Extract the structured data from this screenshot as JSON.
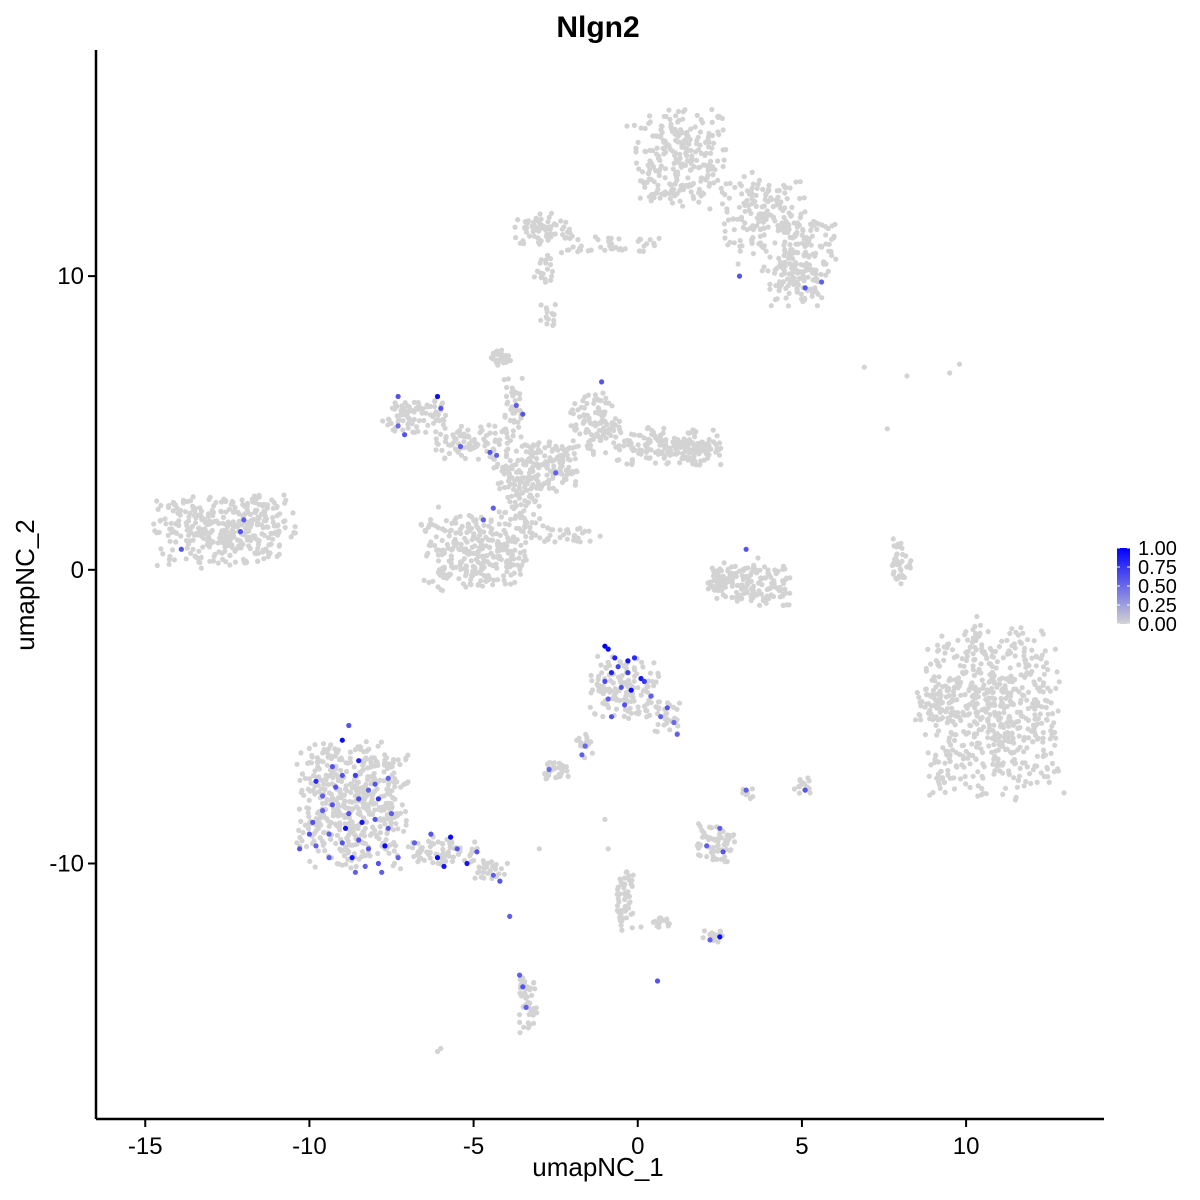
{
  "chart_data": {
    "type": "scatter",
    "title": "Nlgn2",
    "xlabel": "umapNC_1",
    "ylabel": "umapNC_2",
    "xlim": [
      -16.5,
      14.2
    ],
    "ylim": [
      -18.7,
      17.7
    ],
    "x_ticks": [
      -15,
      -10,
      -5,
      0,
      5,
      10
    ],
    "x_tick_labels": [
      "-15",
      "-10",
      "-5",
      "0",
      "5",
      "10"
    ],
    "y_ticks": [
      -10,
      0,
      10
    ],
    "y_tick_labels": [
      "-10",
      "0",
      "10"
    ],
    "grid": false,
    "legend_position": "right",
    "color_scale": {
      "low": "#d3d3d3",
      "high": "#0000ff",
      "min": 0,
      "max": 1,
      "ticks": [
        1.0,
        0.75,
        0.5,
        0.25,
        0.0
      ],
      "tick_labels": [
        "1.00",
        "0.75",
        "0.50",
        "0.25",
        "0.00"
      ]
    },
    "background_clusters": [
      {
        "cx": 1.3,
        "cy": 14.0,
        "rx": 1.3,
        "ry": 1.6,
        "n": 260
      },
      {
        "cx": 3.8,
        "cy": 12.0,
        "rx": 1.2,
        "ry": 1.3,
        "n": 160
      },
      {
        "cx": 5.2,
        "cy": 11.0,
        "rx": 0.9,
        "ry": 0.9,
        "n": 110
      },
      {
        "cx": 4.7,
        "cy": 9.7,
        "rx": 0.9,
        "ry": 0.7,
        "n": 80
      },
      {
        "cx": -2.9,
        "cy": 11.6,
        "rx": 0.8,
        "ry": 0.5,
        "n": 80
      },
      {
        "cx": -0.8,
        "cy": 11.1,
        "rx": 1.5,
        "ry": 0.3,
        "n": 45
      },
      {
        "cx": -2.9,
        "cy": 10.2,
        "rx": 0.4,
        "ry": 0.6,
        "n": 20
      },
      {
        "cx": -2.8,
        "cy": 8.6,
        "rx": 0.3,
        "ry": 0.4,
        "n": 16
      },
      {
        "cx": -12.8,
        "cy": 1.3,
        "rx": 1.8,
        "ry": 1.1,
        "n": 300
      },
      {
        "cx": -11.4,
        "cy": 1.7,
        "rx": 0.9,
        "ry": 0.9,
        "n": 70
      },
      {
        "cx": -6.8,
        "cy": 5.2,
        "rx": 0.9,
        "ry": 0.6,
        "n": 90
      },
      {
        "cx": -5.1,
        "cy": 4.3,
        "rx": 1.1,
        "ry": 0.6,
        "n": 80
      },
      {
        "cx": -4.2,
        "cy": 7.2,
        "rx": 0.3,
        "ry": 0.3,
        "n": 30
      },
      {
        "cx": -3.8,
        "cy": 5.4,
        "rx": 0.3,
        "ry": 1.2,
        "n": 40
      },
      {
        "cx": -3.1,
        "cy": 3.5,
        "rx": 1.2,
        "ry": 0.8,
        "n": 200
      },
      {
        "cx": -1.3,
        "cy": 5.0,
        "rx": 0.7,
        "ry": 1.0,
        "n": 110
      },
      {
        "cx": 0.7,
        "cy": 4.2,
        "rx": 1.3,
        "ry": 0.6,
        "n": 130
      },
      {
        "cx": 1.9,
        "cy": 4.2,
        "rx": 0.6,
        "ry": 0.6,
        "n": 70
      },
      {
        "cx": -5.0,
        "cy": 0.6,
        "rx": 1.5,
        "ry": 1.2,
        "n": 280
      },
      {
        "cx": -3.6,
        "cy": 2.1,
        "rx": 0.6,
        "ry": 1.0,
        "n": 60
      },
      {
        "cx": -2.3,
        "cy": 1.2,
        "rx": 1.1,
        "ry": 0.3,
        "n": 35
      },
      {
        "cx": 3.4,
        "cy": -0.5,
        "rx": 1.2,
        "ry": 0.7,
        "n": 150
      },
      {
        "cx": 2.6,
        "cy": -0.3,
        "rx": 0.4,
        "ry": 0.4,
        "n": 30
      },
      {
        "cx": 8.0,
        "cy": 0.3,
        "rx": 0.3,
        "ry": 0.7,
        "n": 40
      },
      {
        "cx": 10.8,
        "cy": -4.8,
        "rx": 1.9,
        "ry": 2.7,
        "n": 620
      },
      {
        "cx": 9.0,
        "cy": -4.6,
        "rx": 0.5,
        "ry": 0.6,
        "n": 40
      },
      {
        "cx": -8.7,
        "cy": -8.0,
        "rx": 1.6,
        "ry": 2.0,
        "n": 520
      },
      {
        "cx": -5.9,
        "cy": -9.6,
        "rx": 1.0,
        "ry": 0.4,
        "n": 70
      },
      {
        "cx": -4.5,
        "cy": -10.2,
        "rx": 0.5,
        "ry": 0.3,
        "n": 26
      },
      {
        "cx": -0.4,
        "cy": -4.0,
        "rx": 1.0,
        "ry": 1.0,
        "n": 140
      },
      {
        "cx": 0.9,
        "cy": -5.1,
        "rx": 0.4,
        "ry": 0.6,
        "n": 28
      },
      {
        "cx": -1.6,
        "cy": -5.9,
        "rx": 0.3,
        "ry": 0.5,
        "n": 14
      },
      {
        "cx": -2.5,
        "cy": -6.8,
        "rx": 0.4,
        "ry": 0.3,
        "n": 30
      },
      {
        "cx": 2.3,
        "cy": -9.3,
        "rx": 0.6,
        "ry": 0.6,
        "n": 70
      },
      {
        "cx": -0.4,
        "cy": -11.2,
        "rx": 0.3,
        "ry": 1.0,
        "n": 50
      },
      {
        "cx": 0.5,
        "cy": -12.0,
        "rx": 0.6,
        "ry": 0.2,
        "n": 16
      },
      {
        "cx": 2.3,
        "cy": -12.5,
        "rx": 0.3,
        "ry": 0.2,
        "n": 18
      },
      {
        "cx": -3.4,
        "cy": -14.8,
        "rx": 0.3,
        "ry": 0.9,
        "n": 45
      },
      {
        "cx": 5.0,
        "cy": -7.4,
        "rx": 0.3,
        "ry": 0.3,
        "n": 14
      },
      {
        "cx": 3.3,
        "cy": -7.6,
        "rx": 0.2,
        "ry": 0.2,
        "n": 8
      }
    ],
    "background_points": [
      [
        6.9,
        6.9
      ],
      [
        8.2,
        6.6
      ],
      [
        9.5,
        6.7
      ],
      [
        9.8,
        7.0
      ],
      [
        7.6,
        4.8
      ],
      [
        -6.0,
        -16.3
      ],
      [
        -6.1,
        -16.4
      ],
      [
        -0.9,
        -9.5
      ],
      [
        -1.0,
        -8.5
      ],
      [
        -3.0,
        -9.5
      ]
    ],
    "expressed_points": [
      [
        -1.0,
        -2.6,
        1.0
      ],
      [
        -0.9,
        -2.7,
        0.95
      ],
      [
        -0.7,
        -3.0,
        0.85
      ],
      [
        -0.3,
        -3.1,
        0.9
      ],
      [
        -0.1,
        -3.0,
        0.8
      ],
      [
        -0.6,
        -3.3,
        0.7
      ],
      [
        -0.8,
        -3.5,
        0.85
      ],
      [
        0.1,
        -3.7,
        0.9
      ],
      [
        0.2,
        -3.8,
        0.75
      ],
      [
        -0.2,
        -4.1,
        0.95
      ],
      [
        -0.5,
        -4.0,
        0.6
      ],
      [
        -0.9,
        -4.4,
        0.55
      ],
      [
        -0.4,
        -4.6,
        0.6
      ],
      [
        0.7,
        -5.0,
        0.55
      ],
      [
        1.1,
        -5.2,
        0.5
      ],
      [
        1.2,
        -5.6,
        0.55
      ],
      [
        -0.8,
        -5.0,
        0.6
      ],
      [
        -1.6,
        -6.0,
        0.5
      ],
      [
        -1.7,
        -6.3,
        0.55
      ],
      [
        -2.7,
        -6.8,
        0.5
      ],
      [
        -8.8,
        -5.3,
        0.6
      ],
      [
        -9.0,
        -5.8,
        0.95
      ],
      [
        -8.5,
        -6.5,
        0.85
      ],
      [
        -9.3,
        -6.7,
        0.6
      ],
      [
        -9.8,
        -7.2,
        0.8
      ],
      [
        -9.2,
        -7.4,
        0.6
      ],
      [
        -8.6,
        -7.0,
        0.7
      ],
      [
        -8.0,
        -7.3,
        0.6
      ],
      [
        -7.6,
        -7.1,
        0.55
      ],
      [
        -7.9,
        -7.8,
        0.75
      ],
      [
        -8.5,
        -7.8,
        0.65
      ],
      [
        -9.3,
        -8.0,
        0.6
      ],
      [
        -9.6,
        -8.2,
        0.55
      ],
      [
        -9.9,
        -8.6,
        0.6
      ],
      [
        -8.8,
        -8.3,
        0.6
      ],
      [
        -8.4,
        -8.6,
        0.9
      ],
      [
        -8.0,
        -8.5,
        0.6
      ],
      [
        -7.5,
        -8.3,
        0.55
      ],
      [
        -7.6,
        -8.8,
        0.6
      ],
      [
        -8.9,
        -8.8,
        0.95
      ],
      [
        -9.4,
        -9.0,
        0.55
      ],
      [
        -9.0,
        -9.3,
        0.6
      ],
      [
        -8.5,
        -9.2,
        0.6
      ],
      [
        -8.2,
        -9.5,
        0.6
      ],
      [
        -7.7,
        -9.4,
        0.95
      ],
      [
        -9.8,
        -9.4,
        0.55
      ],
      [
        -10.3,
        -9.5,
        0.6
      ],
      [
        -9.4,
        -9.8,
        0.55
      ],
      [
        -8.7,
        -9.8,
        0.9
      ],
      [
        -8.3,
        -10.1,
        0.55
      ],
      [
        -7.9,
        -10.0,
        0.6
      ],
      [
        -7.3,
        -9.8,
        0.55
      ],
      [
        -9.0,
        -7.0,
        0.6
      ],
      [
        -8.2,
        -7.5,
        0.55
      ],
      [
        -9.6,
        -7.7,
        0.55
      ],
      [
        -10.0,
        -9.0,
        0.6
      ],
      [
        -8.6,
        -10.3,
        0.55
      ],
      [
        -7.8,
        -10.3,
        0.55
      ],
      [
        -6.8,
        -9.3,
        0.55
      ],
      [
        -6.3,
        -9.0,
        0.6
      ],
      [
        -6.1,
        -9.8,
        0.95
      ],
      [
        -5.7,
        -9.1,
        0.95
      ],
      [
        -5.9,
        -10.1,
        0.9
      ],
      [
        -5.5,
        -9.5,
        0.6
      ],
      [
        -5.2,
        -10.0,
        0.9
      ],
      [
        -4.9,
        -9.6,
        0.6
      ],
      [
        -4.4,
        -10.4,
        0.55
      ],
      [
        -4.2,
        -10.6,
        0.6
      ],
      [
        -3.9,
        -11.8,
        0.55
      ],
      [
        -3.6,
        -13.8,
        0.55
      ],
      [
        -3.5,
        -14.2,
        0.6
      ],
      [
        -3.4,
        -14.9,
        0.55
      ],
      [
        -7.3,
        5.9,
        0.6
      ],
      [
        -6.1,
        5.9,
        0.95
      ],
      [
        -6.0,
        5.5,
        0.6
      ],
      [
        -7.1,
        4.6,
        0.6
      ],
      [
        -7.3,
        4.9,
        0.5
      ],
      [
        -5.4,
        4.2,
        0.55
      ],
      [
        -4.5,
        4.0,
        0.6
      ],
      [
        -4.3,
        3.9,
        0.55
      ],
      [
        -3.7,
        5.6,
        0.55
      ],
      [
        -3.5,
        5.3,
        0.6
      ],
      [
        -2.5,
        3.3,
        0.55
      ],
      [
        -4.7,
        1.7,
        0.55
      ],
      [
        -4.4,
        2.1,
        0.55
      ],
      [
        -1.1,
        6.4,
        0.6
      ],
      [
        -12.1,
        1.3,
        0.6
      ],
      [
        -12.0,
        1.7,
        0.55
      ],
      [
        -13.9,
        0.7,
        0.6
      ],
      [
        3.1,
        10.0,
        0.6
      ],
      [
        5.1,
        9.6,
        0.6
      ],
      [
        5.6,
        9.8,
        0.55
      ],
      [
        3.3,
        0.7,
        0.6
      ],
      [
        5.1,
        -7.5,
        0.6
      ],
      [
        3.3,
        -7.5,
        0.55
      ],
      [
        2.5,
        -8.8,
        0.55
      ],
      [
        2.1,
        -9.4,
        0.55
      ],
      [
        2.6,
        -9.6,
        0.6
      ],
      [
        2.5,
        -12.5,
        0.95
      ],
      [
        2.2,
        -12.6,
        0.55
      ],
      [
        0.6,
        -14.0,
        0.6
      ],
      [
        -0.3,
        -3.5,
        0.7
      ],
      [
        0.4,
        -4.3,
        0.55
      ],
      [
        -1.0,
        -3.8,
        0.65
      ],
      [
        0.9,
        -4.7,
        0.6
      ]
    ]
  }
}
